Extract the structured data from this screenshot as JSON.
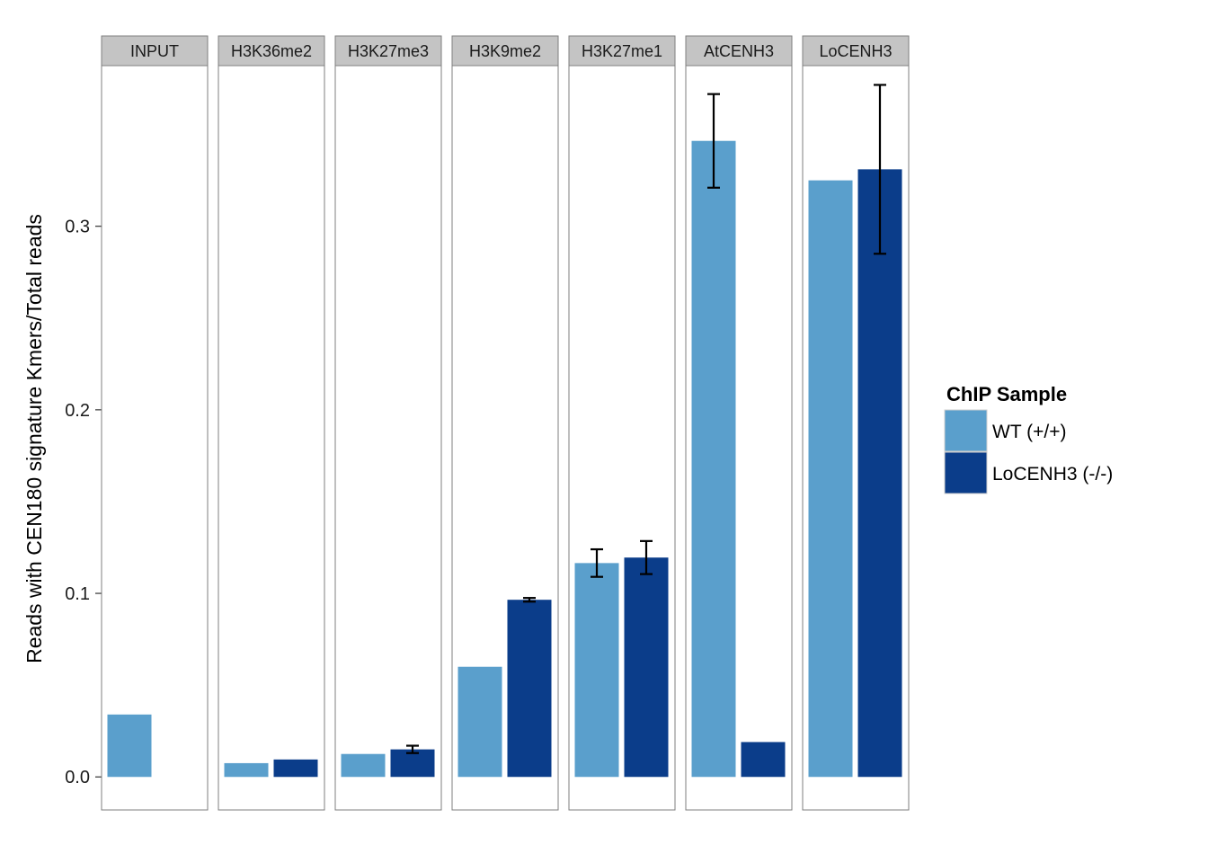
{
  "chart_data": {
    "type": "bar",
    "facet_by": "ChIP target",
    "ylabel": "Reads with CEN180 signature Kmers/Total reads",
    "ylim": [
      -0.018,
      0.3875
    ],
    "y_ticks": [
      0.0,
      0.1,
      0.2,
      0.3
    ],
    "y_tick_labels": [
      "0.0",
      "0.1",
      "0.2",
      "0.3"
    ],
    "grid": false,
    "legend": {
      "title": "ChIP Sample",
      "position": "right",
      "entries": [
        "WT (+/+)",
        "LoCENH3 (-/-)"
      ]
    },
    "colors": {
      "WT (+/+)": "#5a9fcc",
      "LoCENH3 (-/-)": "#0b3d8a"
    },
    "panels": [
      {
        "label": "INPUT",
        "bars": [
          {
            "series": "WT (+/+)",
            "value": 0.034
          }
        ]
      },
      {
        "label": "H3K36me2",
        "bars": [
          {
            "series": "WT (+/+)",
            "value": 0.0075
          },
          {
            "series": "LoCENH3 (-/-)",
            "value": 0.0095
          }
        ]
      },
      {
        "label": "H3K27me3",
        "bars": [
          {
            "series": "WT (+/+)",
            "value": 0.0125
          },
          {
            "series": "LoCENH3 (-/-)",
            "value": 0.015,
            "err_low": 0.013,
            "err_high": 0.017
          }
        ]
      },
      {
        "label": "H3K9me2",
        "bars": [
          {
            "series": "WT (+/+)",
            "value": 0.06
          },
          {
            "series": "LoCENH3 (-/-)",
            "value": 0.0965,
            "err_low": 0.0955,
            "err_high": 0.0975
          }
        ]
      },
      {
        "label": "H3K27me1",
        "bars": [
          {
            "series": "WT (+/+)",
            "value": 0.1165,
            "err_low": 0.109,
            "err_high": 0.124
          },
          {
            "series": "LoCENH3 (-/-)",
            "value": 0.1195,
            "err_low": 0.1105,
            "err_high": 0.1285
          }
        ]
      },
      {
        "label": "AtCENH3",
        "bars": [
          {
            "series": "WT (+/+)",
            "value": 0.3465,
            "err_low": 0.321,
            "err_high": 0.372
          },
          {
            "series": "LoCENH3 (-/-)",
            "value": 0.019
          }
        ]
      },
      {
        "label": "LoCENH3",
        "bars": [
          {
            "series": "WT (+/+)",
            "value": 0.325
          },
          {
            "series": "LoCENH3 (-/-)",
            "value": 0.331,
            "err_low": 0.285,
            "err_high": 0.377
          }
        ]
      }
    ]
  }
}
